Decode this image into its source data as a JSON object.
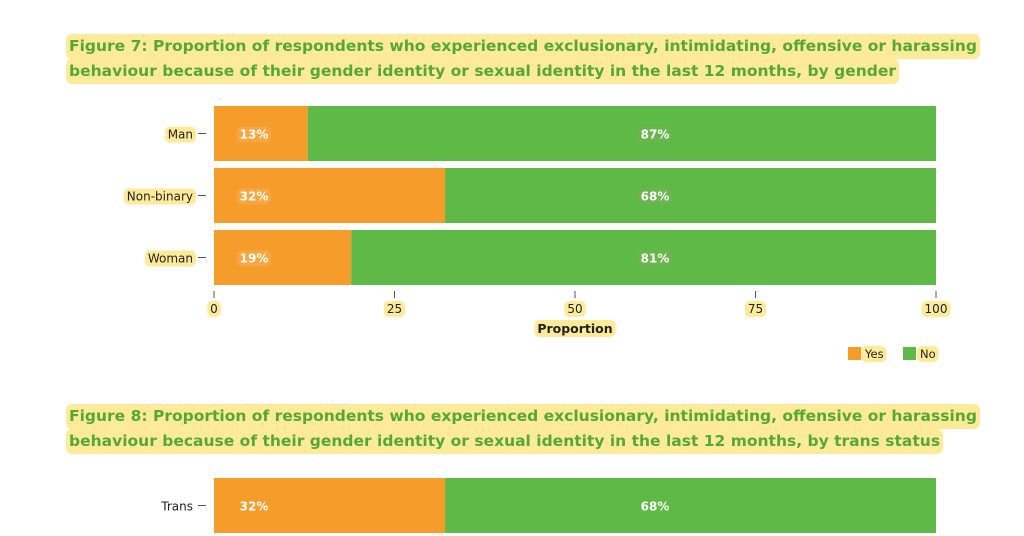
{
  "figure7": {
    "title_line1": "Figure 7: Proportion of respondents who experienced exclusionary, intimidating, offensive or harassing",
    "title_line2": "behaviour because of their gender identity or sexual identity in the last 12 months, by gender"
  },
  "figure8": {
    "title_line1": "Figure 8: Proportion of respondents who experienced exclusionary, intimidating, offensive or harassing",
    "title_line2": "behaviour because of their gender identity or sexual identity in the last 12 months, by trans status"
  },
  "colors": {
    "yes": "#f59c2b",
    "no": "#5fb946",
    "title": "#56a832",
    "highlight": "#fdeb9a"
  },
  "chart_data": [
    {
      "type": "bar",
      "orientation": "horizontal",
      "stacked": true,
      "categories": [
        "Man",
        "Non-binary",
        "Woman"
      ],
      "series": [
        {
          "name": "Yes",
          "values": [
            13,
            32,
            19
          ],
          "labels": [
            "13%",
            "32%",
            "19%"
          ]
        },
        {
          "name": "No",
          "values": [
            87,
            68,
            81
          ],
          "labels": [
            "87%",
            "68%",
            "81%"
          ]
        }
      ],
      "xlabel": "Proportion",
      "xlim": [
        0,
        100
      ],
      "xticks": [
        "0",
        "25",
        "50",
        "75",
        "100"
      ],
      "legend": "bottom-right",
      "grid": false
    },
    {
      "type": "bar",
      "orientation": "horizontal",
      "stacked": true,
      "categories": [
        "Trans"
      ],
      "series": [
        {
          "name": "Yes",
          "values": [
            32
          ],
          "labels": [
            "32%"
          ]
        },
        {
          "name": "No",
          "values": [
            68
          ],
          "labels": [
            "68%"
          ]
        }
      ],
      "xlim": [
        0,
        100
      ]
    }
  ]
}
